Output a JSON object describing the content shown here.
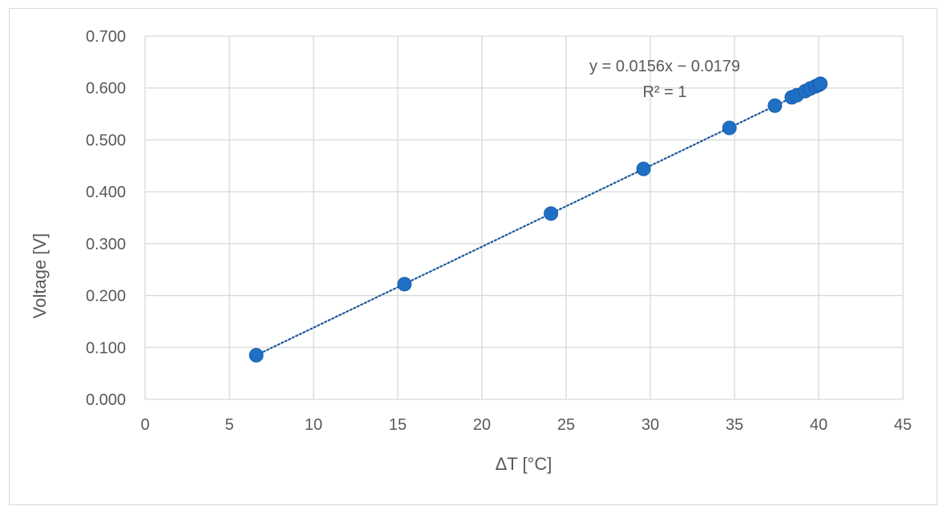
{
  "chart_data": {
    "type": "scatter",
    "title": "",
    "xlabel": "ΔT [°C]",
    "ylabel": "Voltage  [V]",
    "xlim": [
      0,
      45
    ],
    "ylim": [
      0,
      0.7
    ],
    "x_ticks": [
      "0",
      "5",
      "10",
      "15",
      "20",
      "25",
      "30",
      "35",
      "40",
      "45"
    ],
    "y_ticks": [
      "0.000",
      "0.100",
      "0.200",
      "0.300",
      "0.400",
      "0.500",
      "0.600",
      "0.700"
    ],
    "grid": true,
    "legend": "none",
    "series": [
      {
        "x": [
          6.6,
          15.4,
          24.1,
          29.6,
          34.7,
          37.4,
          38.4,
          38.7,
          39.2,
          39.5,
          39.8,
          40.0,
          40.1
        ],
        "y": [
          0.085,
          0.222,
          0.358,
          0.444,
          0.523,
          0.566,
          0.582,
          0.586,
          0.594,
          0.599,
          0.603,
          0.606,
          0.608
        ],
        "color": "#1f6fc5"
      }
    ],
    "trendline": {
      "type": "linear",
      "slope": 0.0156,
      "intercept": -0.0179,
      "x_range": [
        6.6,
        40.1
      ],
      "style": "dotted",
      "color": "#1a5a9a",
      "equation_label": "y = 0.0156x − 0.0179",
      "r2_label": "R² = 1"
    }
  },
  "colors": {
    "gridline": "#d9d9d9",
    "axis_text": "#595959",
    "marker": "#1f6fc5"
  }
}
